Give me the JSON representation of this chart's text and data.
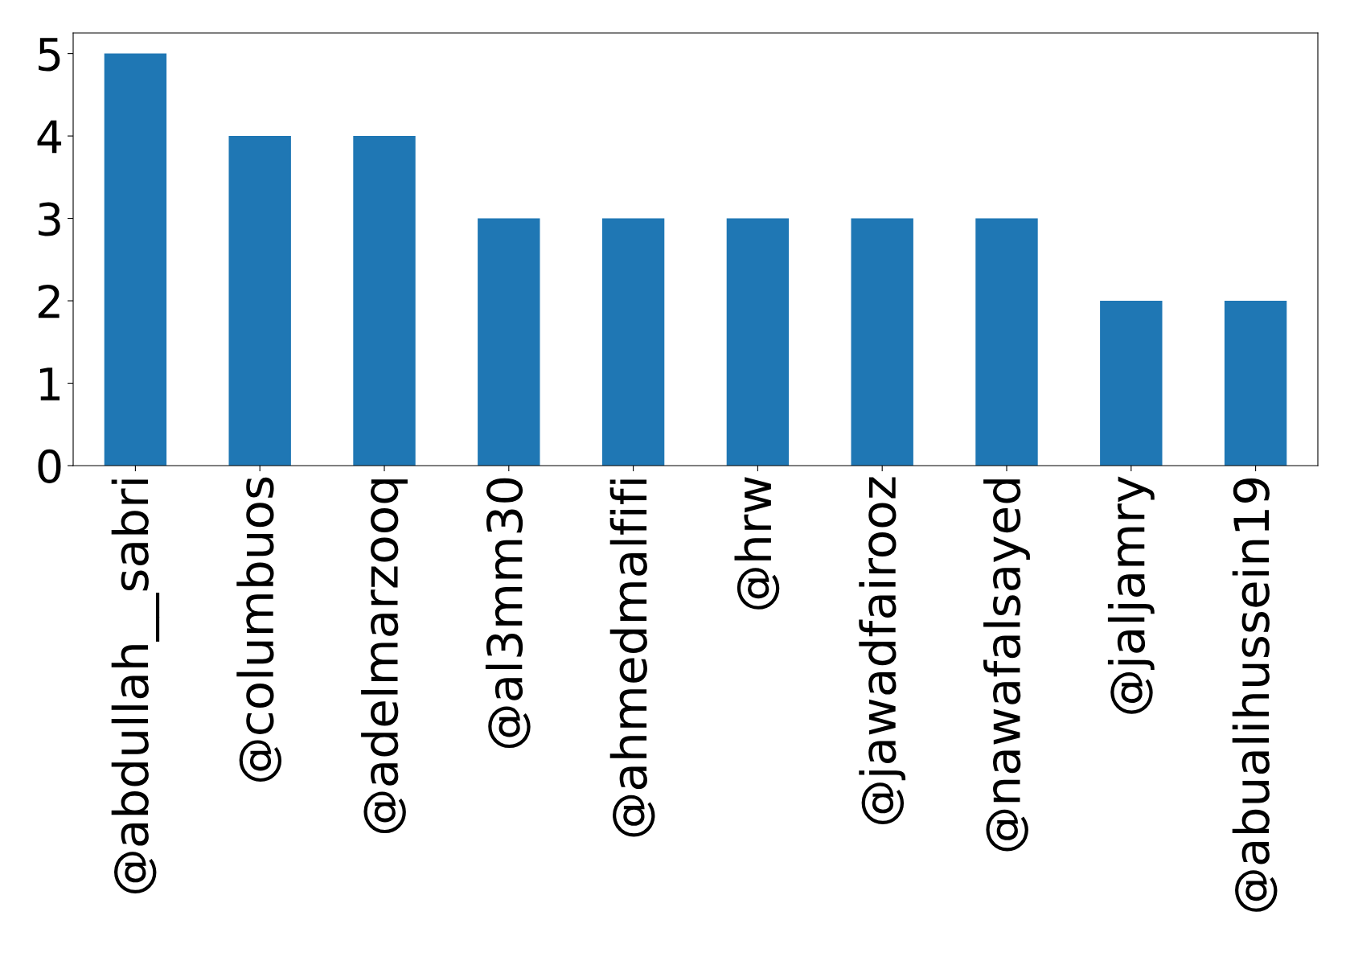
{
  "chart_data": {
    "type": "bar",
    "categories": [
      "@abdullah__sabri",
      "@columbuos",
      "@adelmarzooq",
      "@al3mm30",
      "@ahmedmalfifi",
      "@hrw",
      "@jawadfairooz",
      "@nawafalsayed",
      "@jaljamry",
      "@abualihussein19"
    ],
    "values": [
      5,
      4,
      4,
      3,
      3,
      3,
      3,
      3,
      2,
      2
    ],
    "color": "#1f77b4",
    "ylim": [
      0,
      5.25
    ],
    "yticks": [
      0,
      1,
      2,
      3,
      4,
      5
    ],
    "grid": false
  }
}
